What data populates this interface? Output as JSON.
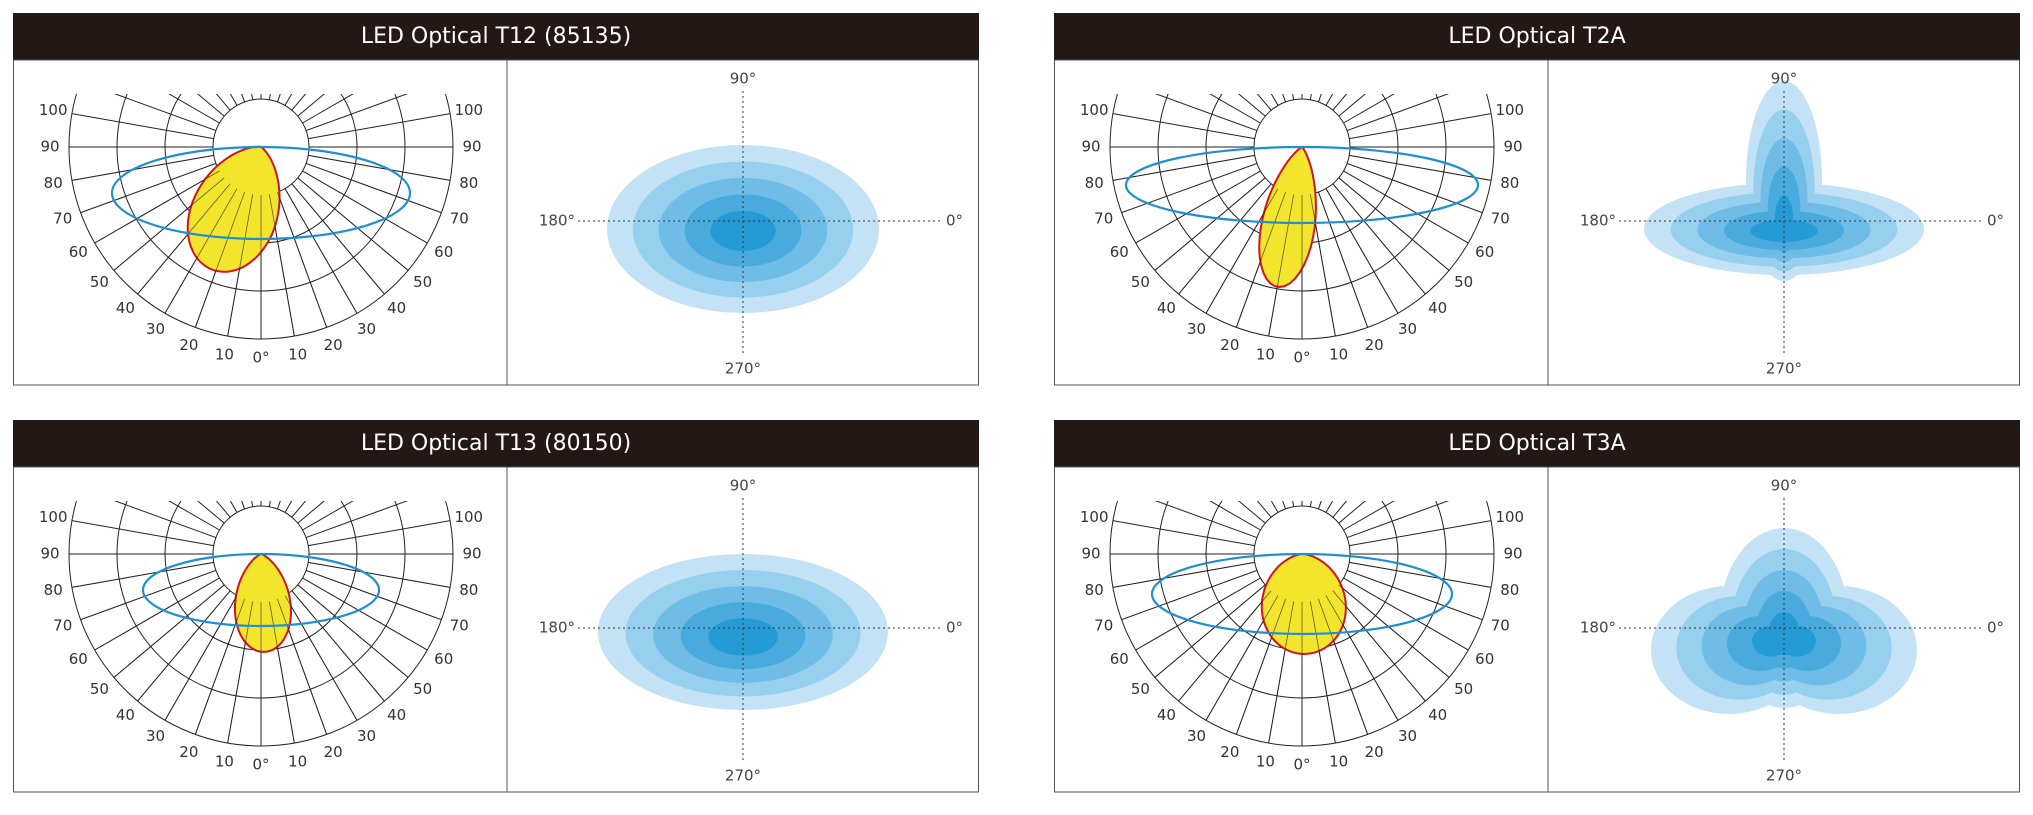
{
  "panels": [
    {
      "title": "LED Optical T12 (85135)"
    },
    {
      "title": "LED Optical T2A"
    },
    {
      "title": "LED Optical T13 (80150)"
    },
    {
      "title": "LED Optical T3A"
    }
  ],
  "polar_angle_labels": [
    "0°",
    "10",
    "20",
    "30",
    "40",
    "50",
    "60",
    "70",
    "80",
    "90",
    "100"
  ],
  "iso_axis_labels": {
    "top": "90°",
    "bottom": "270°",
    "left": "180°",
    "right": "0°"
  }
}
